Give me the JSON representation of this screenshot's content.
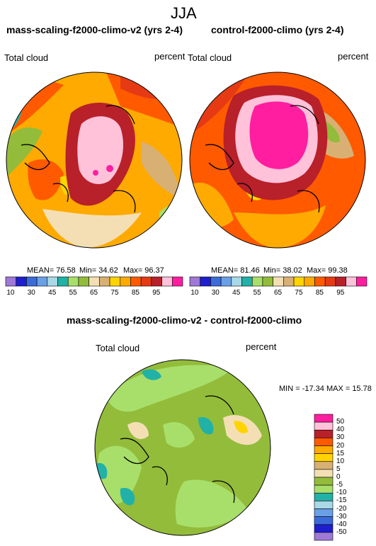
{
  "page": {
    "season": "JJA"
  },
  "panels": [
    {
      "title": "mass-scaling-f2000-climo-v2 (yrs 2-4)",
      "var": "Total cloud",
      "units": "percent",
      "stats": {
        "mean": "MEAN= 76.58",
        "min": "Min= 34.62",
        "max": "Max= 96.37"
      }
    },
    {
      "title": "control-f2000-climo (yrs 2-4)",
      "var": "Total cloud",
      "units": "percent",
      "stats": {
        "mean": "MEAN= 81.46",
        "min": "Min= 38.02",
        "max": "Max= 99.38"
      }
    }
  ],
  "colorbar": {
    "colors": [
      "#9e79d6",
      "#1e1ecf",
      "#3b6bd9",
      "#6aa0e6",
      "#a9d8e6",
      "#22b1a6",
      "#a8df6a",
      "#93bc3b",
      "#f4dfb5",
      "#d8b074",
      "#ffd400",
      "#ffaa00",
      "#ff5a00",
      "#e53a14",
      "#b8202a",
      "#ffc2d9",
      "#ff1ea0"
    ],
    "ticks": [
      "10",
      "30",
      "45",
      "55",
      "65",
      "75",
      "85",
      "95"
    ]
  },
  "diff": {
    "title": "mass-scaling-f2000-climo-v2 - control-f2000-climo",
    "var": "Total cloud",
    "units": "percent",
    "minmax": "MIN = -17.34 MAX =  15.78",
    "colors": [
      "#ff1ea0",
      "#ffc2d9",
      "#b8202a",
      "#ff5a00",
      "#ffaa00",
      "#ffd400",
      "#d8b074",
      "#f4dfb5",
      "#93bc3b",
      "#a8df6a",
      "#22b1a6",
      "#a9d8e6",
      "#6aa0e6",
      "#3b6bd9",
      "#1e1ecf",
      "#9e79d6"
    ],
    "ticks": [
      "50",
      "40",
      "30",
      "20",
      "15",
      "10",
      "5",
      "0",
      "-5",
      "-10",
      "-15",
      "-20",
      "-30",
      "-40",
      "-50"
    ]
  }
}
